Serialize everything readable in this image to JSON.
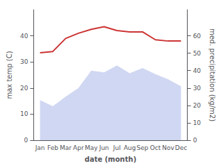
{
  "chart_data": {
    "type": "line",
    "categories": [
      "Jan",
      "Feb",
      "Mar",
      "Apr",
      "May",
      "Jun",
      "Jul",
      "Aug",
      "Sep",
      "Oct",
      "Nov",
      "Dec"
    ],
    "series": [
      {
        "type": "area",
        "axis": "y2",
        "color": "#c8d0f0",
        "values": [
          23.0,
          19.5,
          25.0,
          30.0,
          40.0,
          39.0,
          43.0,
          38.5,
          41.5,
          38.0,
          35.0,
          31.0
        ]
      },
      {
        "type": "line",
        "color": "#cc3333",
        "values": [
          33.5,
          34.0,
          39.0,
          41.0,
          42.5,
          43.5,
          42.0,
          41.5,
          41.5,
          38.5,
          38.0,
          38.0
        ]
      }
    ],
    "xlabel": "date (month)",
    "ylabel": "max temp (C)",
    "y2label": "med. precipitation (kg/m2)",
    "ylim": [
      0,
      50
    ],
    "yticks": [
      0,
      10,
      20,
      30,
      40
    ],
    "y2lim": [
      0,
      75
    ],
    "y2ticks": [
      0,
      10,
      20,
      30,
      40,
      50,
      60
    ],
    "grid": false
  }
}
